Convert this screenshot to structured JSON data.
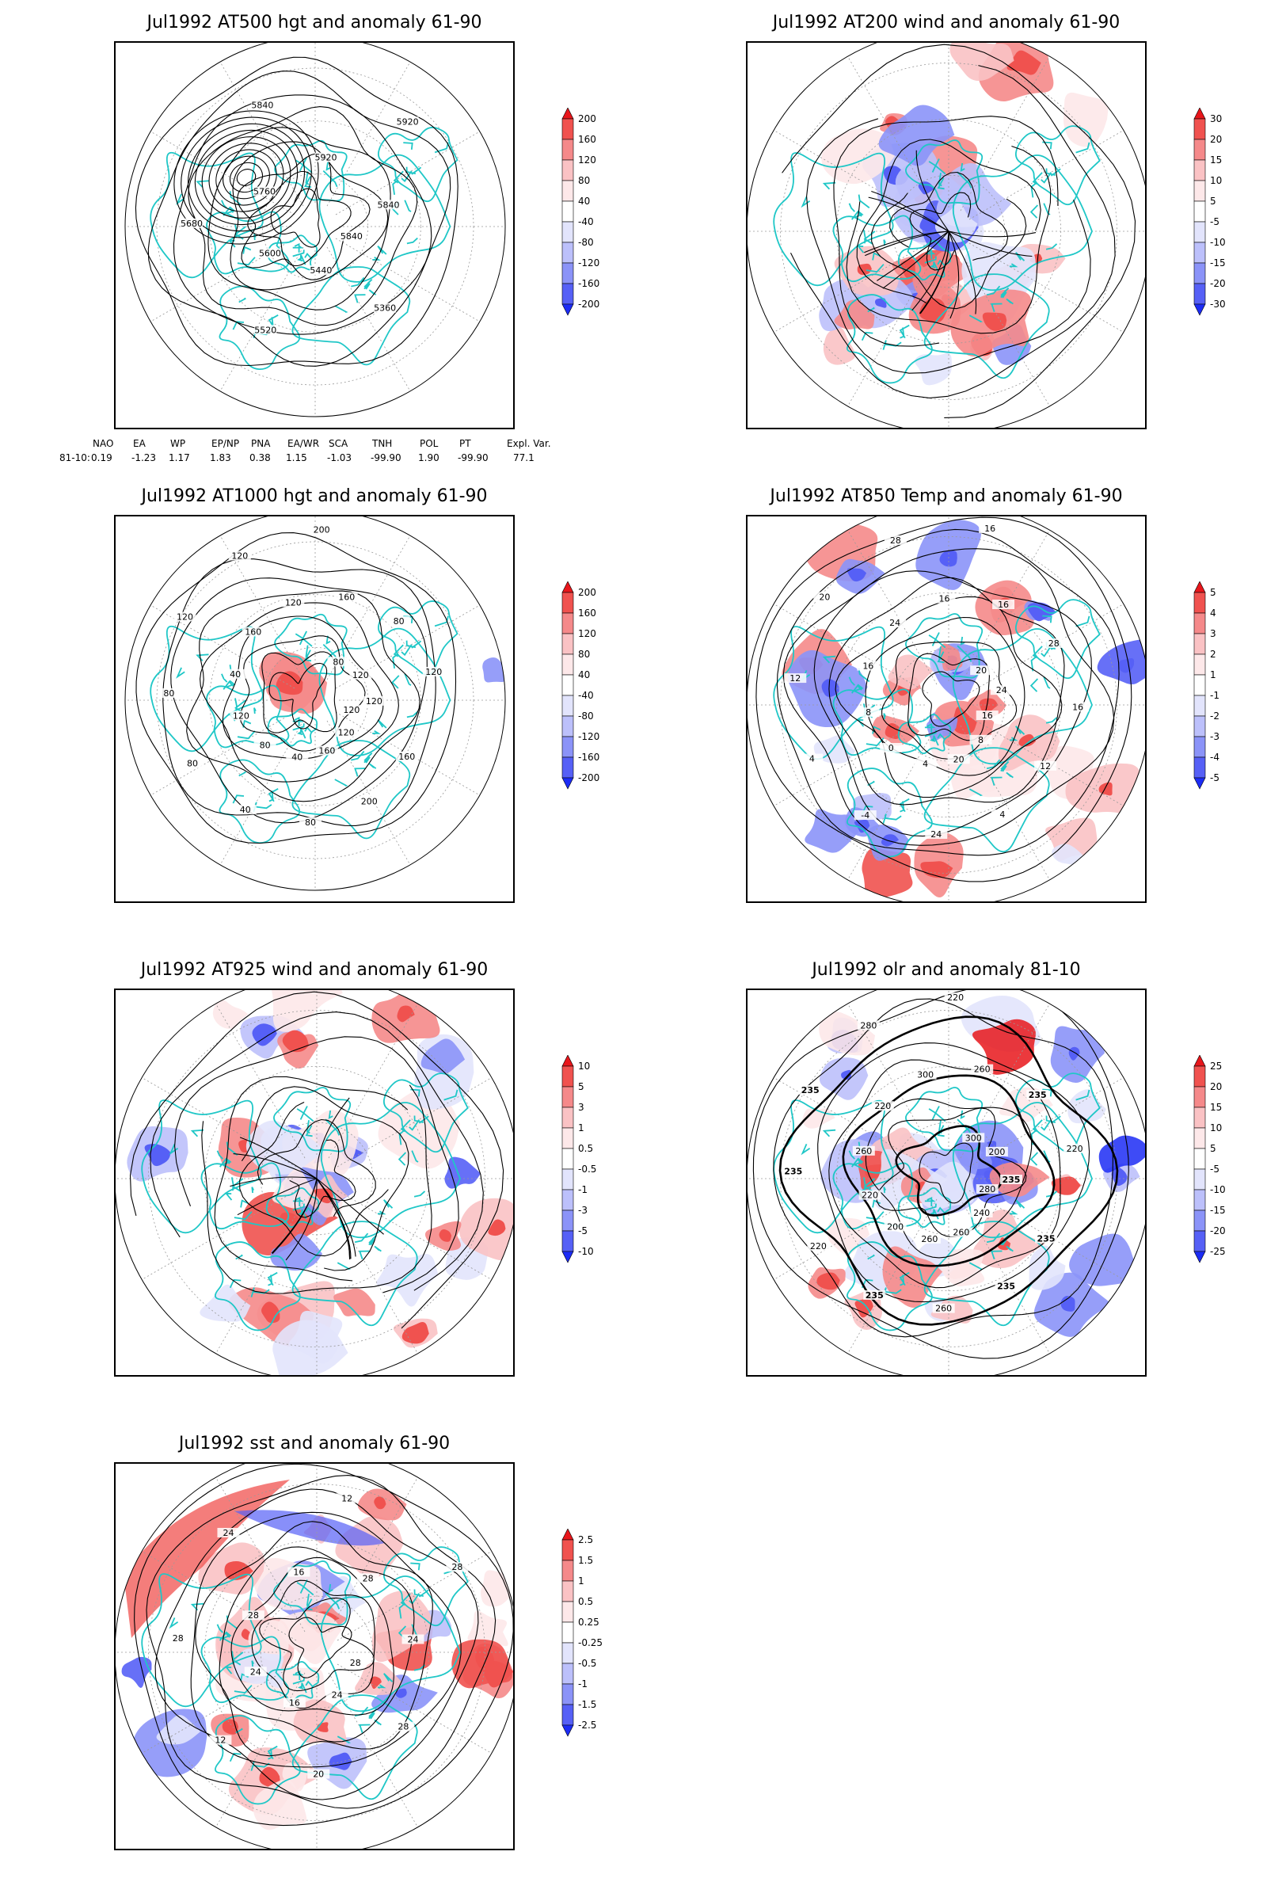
{
  "panels": [
    {
      "id": "p500",
      "title": "Jul1992 AT500 hgt and anomaly 61-90",
      "colorbar": {
        "labels": [
          "200",
          "160",
          "120",
          "80",
          "40",
          "-40",
          "-80",
          "-120",
          "-160",
          "-200"
        ]
      },
      "contour_labels": [
        "5840",
        "5360",
        "5440",
        "5520",
        "5600",
        "5680",
        "5760",
        "5840",
        "5920",
        "5920",
        "5840"
      ],
      "kind": "hgt"
    },
    {
      "id": "p200",
      "title": "Jul1992 AT200 wind and anomaly 61-90",
      "colorbar": {
        "labels": [
          "30",
          "20",
          "15",
          "10",
          "5",
          "-5",
          "-10",
          "-15",
          "-20",
          "-30"
        ]
      },
      "contour_labels": [],
      "kind": "wind"
    },
    {
      "id": "p1000",
      "title": "Jul1992 AT1000 hgt and anomaly 61-90",
      "colorbar": {
        "labels": [
          "200",
          "160",
          "120",
          "80",
          "40",
          "-40",
          "-80",
          "-120",
          "-160",
          "-200"
        ]
      },
      "contour_labels": [
        "120",
        "160",
        "120",
        "200",
        "160",
        "80",
        "40",
        "40",
        "80",
        "80",
        "120",
        "80",
        "40",
        "120",
        "160",
        "120",
        "120",
        "200",
        "160",
        "80",
        "80",
        "120",
        "120",
        "120"
      ],
      "kind": "hgt"
    },
    {
      "id": "p850",
      "title": "Jul1992 AT850 Temp and anomaly 61-90",
      "colorbar": {
        "labels": [
          "5",
          "4",
          "3",
          "2",
          "1",
          "-1",
          "-2",
          "-3",
          "-4",
          "-5"
        ]
      },
      "contour_labels": [
        "16",
        "12",
        "8",
        "4",
        "20",
        "24",
        "4",
        "-4",
        "0",
        "4",
        "8",
        "12",
        "16",
        "20",
        "24",
        "28",
        "16",
        "16",
        "16",
        "20",
        "28",
        "24",
        "16"
      ],
      "kind": "temp"
    },
    {
      "id": "p925",
      "title": "Jul1992 AT925 wind and anomaly 61-90",
      "colorbar": {
        "labels": [
          "10",
          "5",
          "3",
          "1",
          "0.5",
          "-0.5",
          "-1",
          "-3",
          "-5",
          "-10"
        ]
      },
      "contour_labels": [],
      "kind": "wind"
    },
    {
      "id": "polr",
      "title": "Jul1992 olr and anomaly 81-10",
      "colorbar": {
        "labels": [
          "25",
          "20",
          "15",
          "10",
          "5",
          "-5",
          "-10",
          "-15",
          "-20",
          "-25"
        ]
      },
      "contour_labels": [
        "280",
        "235",
        "240",
        "235",
        "260",
        "260",
        "260",
        "235",
        "200",
        "220",
        "220",
        "235",
        "260",
        "235",
        "220",
        "280",
        "300",
        "220",
        "260",
        "300",
        "235",
        "200",
        "220",
        "235"
      ],
      "kind": "olr"
    },
    {
      "id": "psst",
      "title": "Jul1992 sst and anomaly 61-90",
      "colorbar": {
        "labels": [
          "2.5",
          "1.5",
          "1",
          "0.5",
          "0.25",
          "-0.25",
          "-0.5",
          "-1",
          "-1.5",
          "-2.5"
        ]
      },
      "contour_labels": [
        "28",
        "28",
        "24",
        "20",
        "16",
        "12",
        "24",
        "28",
        "28",
        "24",
        "16",
        "12",
        "28",
        "28",
        "24"
      ],
      "kind": "sst"
    }
  ],
  "indices": {
    "headers": [
      "NAO",
      "EA",
      "WP",
      "EP/NP",
      "PNA",
      "EA/WR",
      "SCA",
      "TNH",
      "POL",
      "PT",
      "Expl. Var."
    ],
    "row_label": "81-10:",
    "values": [
      "0.19",
      "-1.23",
      "1.17",
      "1.83",
      "0.38",
      "1.15",
      "-1.03",
      "-99.90",
      "1.90",
      "-99.90",
      "77.1"
    ]
  },
  "colors": {
    "coastline": "#1fc7c7",
    "contour": "#000000",
    "positive_max": "#e8161b",
    "negative_max": "#1c2cf5"
  }
}
